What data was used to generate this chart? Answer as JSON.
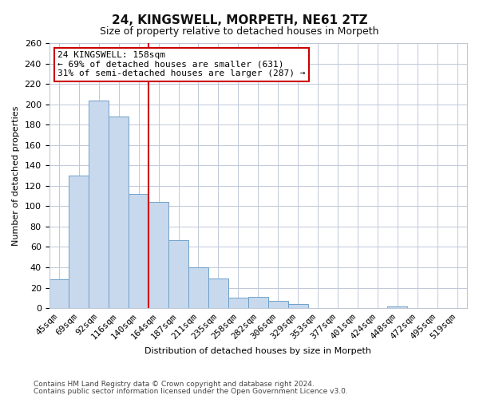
{
  "title": "24, KINGSWELL, MORPETH, NE61 2TZ",
  "subtitle": "Size of property relative to detached houses in Morpeth",
  "xlabel": "Distribution of detached houses by size in Morpeth",
  "ylabel": "Number of detached properties",
  "bar_color": "#c8d9ee",
  "bar_edge_color": "#6fa0c8",
  "categories": [
    "45sqm",
    "69sqm",
    "92sqm",
    "116sqm",
    "140sqm",
    "164sqm",
    "187sqm",
    "211sqm",
    "235sqm",
    "258sqm",
    "282sqm",
    "306sqm",
    "329sqm",
    "353sqm",
    "377sqm",
    "401sqm",
    "424sqm",
    "448sqm",
    "472sqm",
    "495sqm",
    "519sqm"
  ],
  "values": [
    28,
    130,
    204,
    188,
    112,
    104,
    67,
    40,
    29,
    10,
    11,
    7,
    4,
    0,
    0,
    0,
    0,
    2,
    0,
    0,
    0
  ],
  "vline_idx": 5,
  "vline_color": "#cc0000",
  "annotation_title": "24 KINGSWELL: 158sqm",
  "annotation_line1": "← 69% of detached houses are smaller (631)",
  "annotation_line2": "31% of semi-detached houses are larger (287) →",
  "annotation_box_color": "#ffffff",
  "annotation_box_edge": "#cc0000",
  "ylim": [
    0,
    260
  ],
  "yticks": [
    0,
    20,
    40,
    60,
    80,
    100,
    120,
    140,
    160,
    180,
    200,
    220,
    240,
    260
  ],
  "footnote1": "Contains HM Land Registry data © Crown copyright and database right 2024.",
  "footnote2": "Contains public sector information licensed under the Open Government Licence v3.0.",
  "bg_color": "#ffffff",
  "grid_color": "#c0c8d8",
  "title_fontsize": 11,
  "subtitle_fontsize": 9,
  "tick_fontsize": 8,
  "label_fontsize": 8,
  "footnote_fontsize": 6.5
}
